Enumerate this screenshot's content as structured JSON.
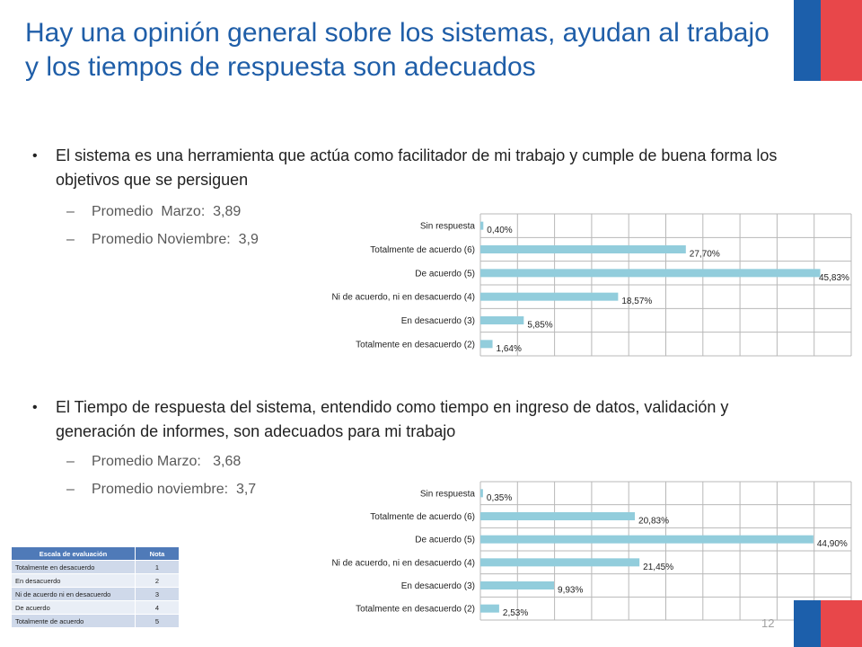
{
  "title": "Hay una opinión general sobre los sistemas, ayudan al trabajo y los tiempos de respuesta son adecuados",
  "colors": {
    "title": "#1f5ea8",
    "bar": "#92cddc",
    "flag_blue": "#1c5fab",
    "flag_red": "#e8474a"
  },
  "section1": {
    "bullet": "El sistema es una herramienta que actúa como facilitador de mi trabajo y cumple de buena forma los objetivos que se persiguen",
    "averages": [
      "Promedio  Marzo:  3,89",
      "Promedio Noviembre:  3,9"
    ]
  },
  "section2": {
    "bullet": "El Tiempo de respuesta del sistema, entendido como tiempo en ingreso de datos, validación y generación de informes, son adecuados para mi trabajo",
    "averages": [
      "Promedio Marzo:   3,68",
      "Promedio noviembre:  3,7"
    ]
  },
  "chart_data": [
    {
      "type": "bar",
      "orientation": "horizontal",
      "categories": [
        "Sin respuesta",
        "Totalmente de acuerdo (6)",
        "De acuerdo (5)",
        "Ni de acuerdo, ni en desacuerdo (4)",
        "En desacuerdo (3)",
        "Totalmente en desacuerdo (2)"
      ],
      "values": [
        0.4,
        27.7,
        45.83,
        18.57,
        5.85,
        1.64
      ],
      "labels": [
        "0,40%",
        "27,70%",
        "45,83%",
        "18,57%",
        "5,85%",
        "1,64%"
      ],
      "xlim": [
        0,
        50
      ],
      "grid": true
    },
    {
      "type": "bar",
      "orientation": "horizontal",
      "categories": [
        "Sin respuesta",
        "Totalmente de acuerdo (6)",
        "De acuerdo (5)",
        "Ni de acuerdo, ni en desacuerdo (4)",
        "En desacuerdo (3)",
        "Totalmente en desacuerdo (2)"
      ],
      "values": [
        0.35,
        20.83,
        44.9,
        21.45,
        9.93,
        2.53
      ],
      "labels": [
        "0,35%",
        "20,83%",
        "44,90%",
        "21,45%",
        "9,93%",
        "2,53%"
      ],
      "xlim": [
        0,
        50
      ],
      "grid": true
    }
  ],
  "scale_table": {
    "headers": [
      "Escala de evaluación",
      "Nota"
    ],
    "rows": [
      [
        "Totalmente en desacuerdo",
        "1"
      ],
      [
        "En desacuerdo",
        "2"
      ],
      [
        "Ni de acuerdo ni en desacuerdo",
        "3"
      ],
      [
        "De acuerdo",
        "4"
      ],
      [
        "Totalmente de acuerdo",
        "5"
      ]
    ]
  },
  "page_number": "12"
}
